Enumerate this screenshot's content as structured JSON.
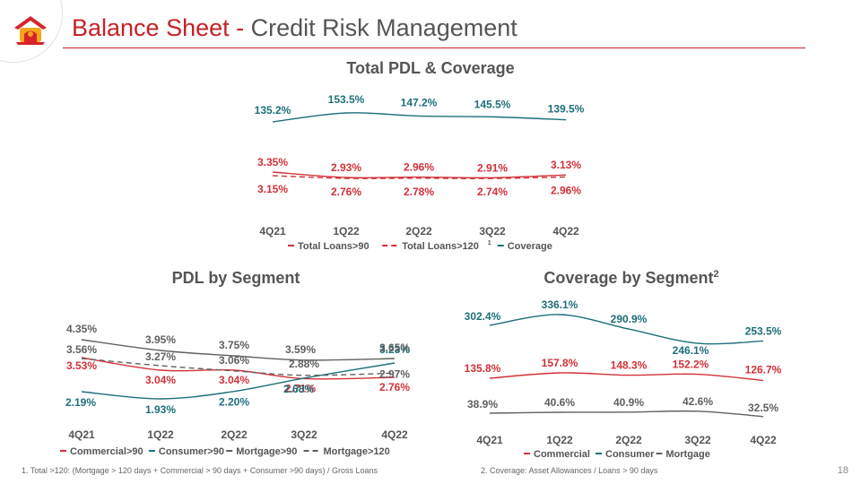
{
  "header": {
    "title_main": "Balance Sheet",
    "title_sep": " - ",
    "title_sub": "Credit Risk Management"
  },
  "colors": {
    "red": "#d2313a",
    "teal": "#1e6f7b",
    "gray": "#606060",
    "title_red": "#c62127"
  },
  "chart_data": [
    {
      "type": "line",
      "title": "Total PDL & Coverage",
      "categories": [
        "4Q21",
        "1Q22",
        "2Q22",
        "3Q22",
        "4Q22"
      ],
      "series": [
        {
          "name": "Total Loans>90",
          "values": [
            3.35,
            2.93,
            2.96,
            2.91,
            3.13
          ],
          "labels": [
            "3.35%",
            "2.93%",
            "2.96%",
            "2.91%",
            "3.13%"
          ],
          "color": "#d2313a",
          "dashed": false
        },
        {
          "name": "Total Loans>120",
          "sup": "1",
          "values": [
            3.15,
            2.76,
            2.78,
            2.74,
            2.96
          ],
          "labels": [
            "3.15%",
            "2.76%",
            "2.78%",
            "2.74%",
            "2.96%"
          ],
          "color": "#d2313a",
          "dashed": true
        },
        {
          "name": "Coverage",
          "values": [
            135.2,
            153.5,
            147.2,
            145.5,
            139.5
          ],
          "labels": [
            "135.2%",
            "153.5%",
            "147.2%",
            "145.5%",
            "139.5%"
          ],
          "color": "#1e6f7b",
          "dashed": false
        }
      ]
    },
    {
      "type": "line",
      "title": "PDL by Segment",
      "categories": [
        "4Q21",
        "1Q22",
        "2Q22",
        "3Q22",
        "4Q22"
      ],
      "series": [
        {
          "name": "Commercial>90",
          "values": [
            3.53,
            3.04,
            3.04,
            2.71,
            2.76
          ],
          "labels": [
            "3.53%",
            "3.04%",
            "3.04%",
            "2.71%",
            "2.76%"
          ],
          "color": "#d2313a",
          "dashed": false
        },
        {
          "name": "Consumer>90",
          "values": [
            2.19,
            1.93,
            2.2,
            2.68,
            3.23
          ],
          "labels": [
            "2.19%",
            "1.93%",
            "2.20%",
            "2.68%",
            "3.23%"
          ],
          "color": "#1e6f7b",
          "dashed": false
        },
        {
          "name": "Mortgage>90",
          "values": [
            4.35,
            3.95,
            3.75,
            3.59,
            3.65
          ],
          "labels": [
            "4.35%",
            "3.95%",
            "3.75%",
            "3.59%",
            "3.65%"
          ],
          "color": "#606060",
          "dashed": false
        },
        {
          "name": "Mortgage>120",
          "values": [
            3.56,
            3.27,
            3.06,
            2.88,
            2.97
          ],
          "labels": [
            "3.56%",
            "3.27%",
            "3.06%",
            "2.88%",
            "2.97%"
          ],
          "color": "#606060",
          "dashed": true
        }
      ]
    },
    {
      "type": "line",
      "title": "Coverage by Segment",
      "title_sup": "2",
      "categories": [
        "4Q21",
        "1Q22",
        "2Q22",
        "3Q22",
        "4Q22"
      ],
      "series": [
        {
          "name": "Commercial",
          "values": [
            135.8,
            157.8,
            148.3,
            152.2,
            126.7
          ],
          "labels": [
            "135.8%",
            "157.8%",
            "148.3%",
            "152.2%",
            "126.7%"
          ],
          "color": "#d2313a",
          "dashed": false
        },
        {
          "name": "Consumer",
          "values": [
            302.4,
            336.1,
            290.9,
            246.1,
            253.5
          ],
          "labels": [
            "302.4%",
            "336.1%",
            "290.9%",
            "246.1%",
            "253.5%"
          ],
          "color": "#1e6f7b",
          "dashed": false
        },
        {
          "name": "Mortgage",
          "values": [
            38.9,
            40.6,
            40.9,
            42.6,
            32.5
          ],
          "labels": [
            "38.9%",
            "40.6%",
            "40.9%",
            "42.6%",
            "32.5%"
          ],
          "color": "#606060",
          "dashed": false
        }
      ]
    }
  ],
  "footnotes": {
    "f1": "1. Total >120: (Mortgage  > 120 days + Commercial > 90 days + Consumer >90 days) / Gross Loans",
    "f2": "2.  Coverage: Asset Allowances / Loans > 90 days"
  },
  "page_number": "18"
}
